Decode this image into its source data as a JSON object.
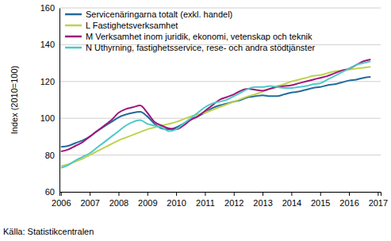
{
  "chart_data": {
    "type": "line",
    "y_label": "Index (2010=100)",
    "source": "Källa: Statistikcentralen",
    "x": [
      2006,
      2006.25,
      2006.5,
      2006.75,
      2007,
      2007.25,
      2007.5,
      2007.75,
      2008,
      2008.25,
      2008.5,
      2008.75,
      2009,
      2009.25,
      2009.5,
      2009.75,
      2010,
      2010.25,
      2010.5,
      2010.75,
      2011,
      2011.25,
      2011.5,
      2011.75,
      2012,
      2012.25,
      2012.5,
      2012.75,
      2013,
      2013.25,
      2013.5,
      2013.75,
      2014,
      2014.25,
      2014.5,
      2014.75,
      2015,
      2015.25,
      2015.5,
      2015.75,
      2016,
      2016.25,
      2016.5,
      2016.75
    ],
    "series": [
      {
        "name": "Servicenäringarna totalt (exkl. handel)",
        "color": "#236b9c",
        "values": [
          84.5,
          85,
          86.5,
          88,
          90,
          93,
          95.5,
          98,
          100.5,
          102,
          103,
          103.5,
          101,
          97,
          94.5,
          94,
          95,
          97,
          99.5,
          101,
          103,
          105.5,
          107,
          108,
          109,
          110,
          111.5,
          112,
          112.5,
          112,
          112,
          113,
          114,
          114.5,
          115.5,
          116.5,
          117,
          118,
          118.5,
          119.5,
          120.5,
          121,
          122,
          122.5
        ]
      },
      {
        "name": "L Fastighetsverksamhet",
        "color": "#bed34f",
        "values": [
          74,
          75,
          76.5,
          78,
          80,
          82,
          84,
          86,
          88,
          89.5,
          91,
          92.5,
          94,
          95,
          96,
          97,
          98,
          99.5,
          101,
          102,
          103,
          104.5,
          106,
          107.5,
          109,
          110.5,
          112,
          113,
          114.5,
          116,
          117.5,
          118.5,
          120,
          121,
          122,
          123,
          123.5,
          124.5,
          125.5,
          126,
          126.5,
          127,
          127.5,
          128
        ]
      },
      {
        "name": "M Verksamhet inom juridik, ekonomi, vetenskap och teknik",
        "color": "#a0157a",
        "values": [
          82,
          83,
          85,
          87,
          90,
          93,
          96,
          99,
          103,
          105,
          106,
          107,
          103,
          98,
          96,
          94.5,
          94,
          96,
          99,
          101,
          104,
          107,
          110,
          111.5,
          113,
          115,
          116,
          115.5,
          115,
          116,
          117,
          117.5,
          118,
          119,
          120,
          121,
          122,
          123,
          124.5,
          126,
          127,
          129,
          131,
          132
        ]
      },
      {
        "name": "N Uthyrning, fastighetsservice, rese- och andra stödtjänster",
        "color": "#4fc8c8",
        "values": [
          73,
          74.5,
          77,
          79,
          81,
          84,
          87,
          90,
          93,
          96,
          98,
          99,
          97,
          96,
          95,
          93,
          94,
          97,
          100,
          103,
          106,
          108,
          109,
          110,
          112,
          114,
          116,
          117,
          117,
          117.5,
          117,
          116.5,
          116.5,
          117,
          117.5,
          118.5,
          119,
          121,
          123,
          125,
          127,
          129,
          130,
          131
        ]
      }
    ],
    "xlim": [
      2005.95,
      2017.1
    ],
    "xticks": [
      2006,
      2007,
      2008,
      2009,
      2010,
      2011,
      2012,
      2013,
      2014,
      2015,
      2016,
      2017
    ],
    "ylim": [
      60,
      160
    ],
    "yticks": [
      60,
      80,
      100,
      120,
      140,
      160
    ],
    "grid": true,
    "legend": "top-left"
  }
}
